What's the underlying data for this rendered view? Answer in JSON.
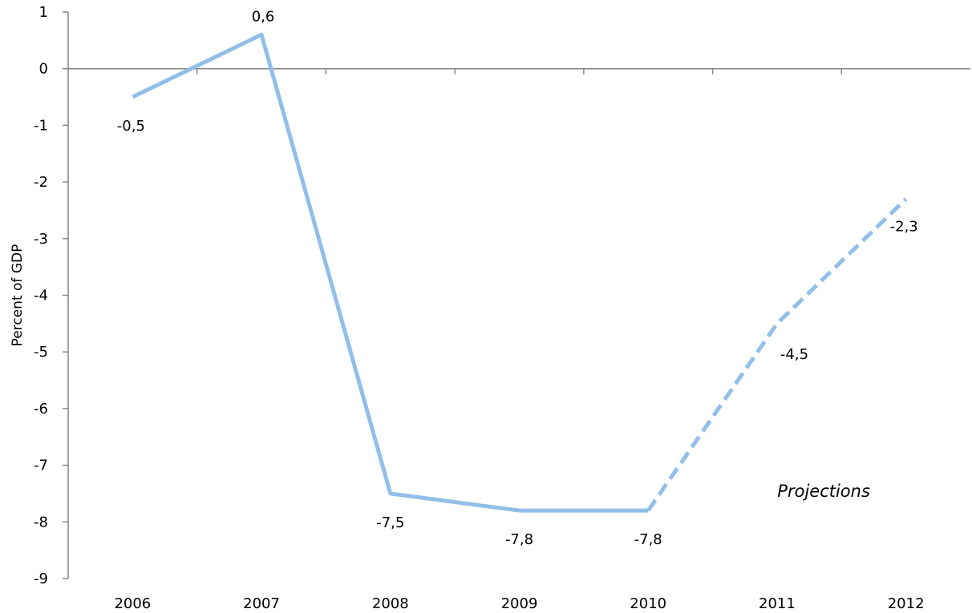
{
  "chart_data": {
    "type": "line",
    "title": "",
    "xlabel": "",
    "ylabel": "Percent of GDP",
    "categories": [
      "2006",
      "2007",
      "2008",
      "2009",
      "2010",
      "2011",
      "2012"
    ],
    "series": [
      {
        "values": [
          -0.5,
          0.6,
          -7.5,
          -7.8,
          -7.8,
          -4.5,
          -2.3
        ],
        "labels": [
          "-0,5",
          "0,6",
          "-7,5",
          "-7,8",
          "-7,8",
          "-4,5",
          "-2,3"
        ],
        "projected_from_index": 4
      }
    ],
    "ylim": [
      -9,
      1
    ],
    "yticks": [
      1,
      0,
      -1,
      -2,
      -3,
      -4,
      -5,
      -6,
      -7,
      -8,
      -9
    ],
    "grid": false,
    "legend": "none",
    "annotations": [
      {
        "text": "Projections",
        "x": "2011",
        "y": -7.6
      }
    ],
    "colors": {
      "line": "#92bfe9",
      "axis": "#868686",
      "text": "#000000"
    }
  }
}
